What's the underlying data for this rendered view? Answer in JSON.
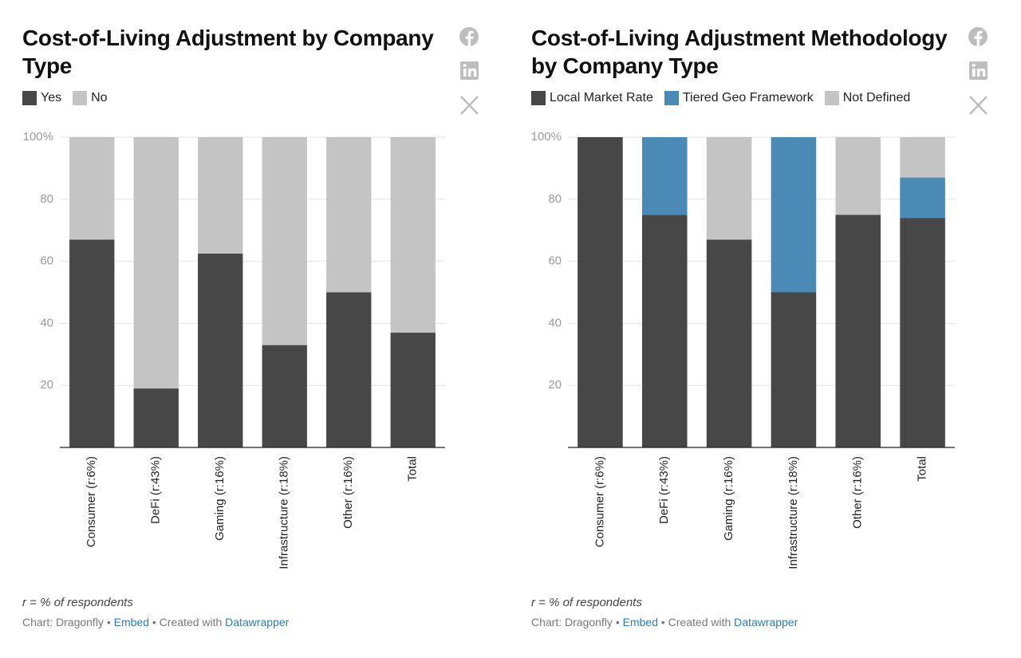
{
  "chart_data": [
    {
      "type": "stacked-bar",
      "title": "Cost-of-Living Adjustment by Company Type",
      "categories": [
        "Consumer (r:6%)",
        "DeFi (r:43%)",
        "Gaming (r:16%)",
        "Infrastructure (r:18%)",
        "Other (r:16%)",
        "Total"
      ],
      "series": [
        {
          "name": "Yes",
          "color": "#474747",
          "values": [
            67,
            19,
            62.5,
            33,
            50,
            37
          ]
        },
        {
          "name": "No",
          "color": "#c4c4c4",
          "values": [
            33,
            81,
            37.5,
            67,
            50,
            63
          ]
        }
      ],
      "ylim": [
        0,
        100
      ],
      "yticks": [
        20,
        40,
        60,
        80,
        {
          "value": 100,
          "label": "100%"
        }
      ],
      "grid": true,
      "note": "r = % of respondents",
      "source": "Chart: Dragonfly",
      "separator": "•",
      "embed": "Embed",
      "created_with": "Created with",
      "credit": "Datawrapper"
    },
    {
      "type": "stacked-bar",
      "title": "Cost-of-Living Adjustment Methodology by Company Type",
      "categories": [
        "Consumer (r:6%)",
        "DeFi (r:43%)",
        "Gaming (r:16%)",
        "Infrastructure (r:18%)",
        "Other (r:16%)",
        "Total"
      ],
      "series": [
        {
          "name": "Local Market Rate",
          "color": "#474747",
          "values": [
            100,
            75,
            67,
            50,
            75,
            74
          ]
        },
        {
          "name": "Tiered Geo Framework",
          "color": "#4a8ab5",
          "values": [
            0,
            25,
            0,
            50,
            0,
            13
          ]
        },
        {
          "name": "Not Defined",
          "color": "#c4c4c4",
          "values": [
            0,
            0,
            33,
            0,
            25,
            13
          ]
        }
      ],
      "ylim": [
        0,
        100
      ],
      "yticks": [
        20,
        40,
        60,
        80,
        {
          "value": 100,
          "label": "100%"
        }
      ],
      "grid": true,
      "note": "r = % of respondents",
      "source": "Chart: Dragonfly",
      "separator": "•",
      "embed": "Embed",
      "created_with": "Created with",
      "credit": "Datawrapper"
    }
  ]
}
